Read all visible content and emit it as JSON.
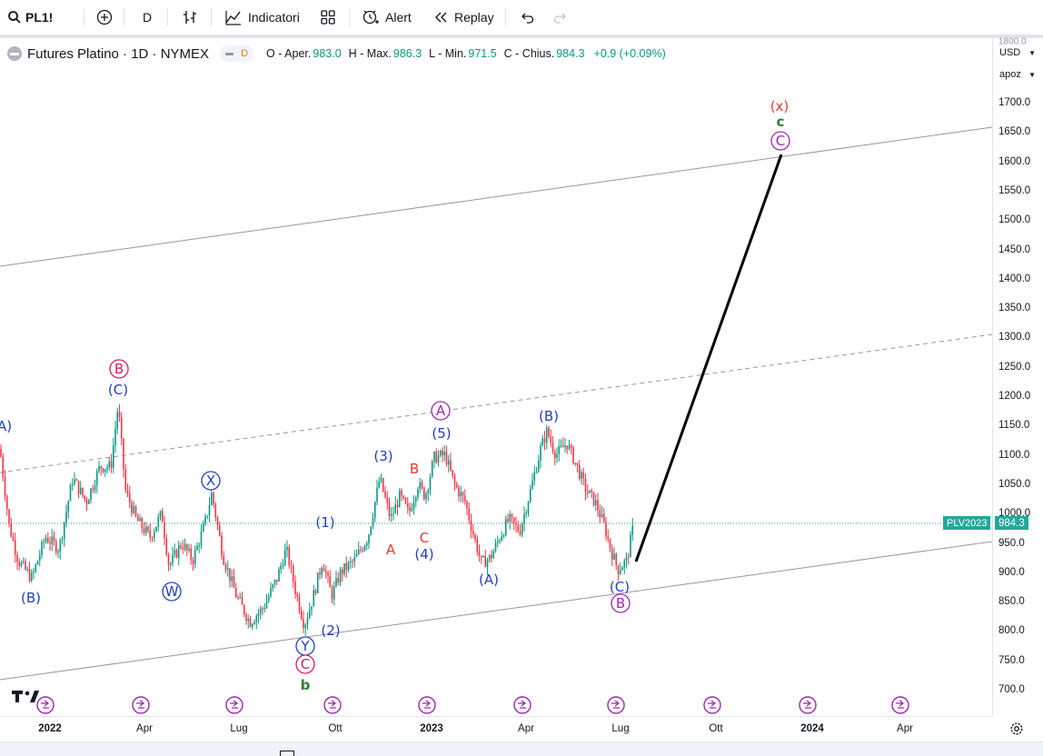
{
  "toolbar": {
    "symbol": "PL1!",
    "interval": "D",
    "indicators_label": "Indicatori",
    "alert_label": "Alert",
    "replay_label": "Replay"
  },
  "legend": {
    "title": "Futures Platino · 1D · NYMEX",
    "badge": "D",
    "open_label": "O - Aper.",
    "open_value": "983.0",
    "high_label": "H - Max.",
    "high_value": "986.3",
    "low_label": "L - Min.",
    "low_value": "971.5",
    "close_label": "C - Chius.",
    "close_value": "984.3",
    "change": "+0.9 (+0.09%)"
  },
  "price_axis": {
    "currency": "USD",
    "mode": "apoz",
    "ticks": [
      "1800.0",
      "1700.0",
      "1650.0",
      "1600.0",
      "1550.0",
      "1500.0",
      "1450.0",
      "1400.0",
      "1350.0",
      "1300.0",
      "1250.0",
      "1200.0",
      "1150.0",
      "1100.0",
      "1050.0",
      "1000.0",
      "950.0",
      "900.0",
      "850.0",
      "800.0",
      "750.0",
      "700.0"
    ],
    "last_symbol": "PLV2023",
    "last_price": "984.3"
  },
  "time_axis": {
    "ticks": [
      {
        "label": "2022",
        "bold": true
      },
      {
        "label": "Apr",
        "bold": false
      },
      {
        "label": "Lug",
        "bold": false
      },
      {
        "label": "Ott",
        "bold": false
      },
      {
        "label": "2023",
        "bold": true
      },
      {
        "label": "Apr",
        "bold": false
      },
      {
        "label": "Lug",
        "bold": false
      },
      {
        "label": "Ott",
        "bold": false
      },
      {
        "label": "2024",
        "bold": true
      },
      {
        "label": "Apr",
        "bold": false
      }
    ]
  },
  "wave_labels": [
    {
      "text": "A)",
      "color": "#1e3fbf",
      "circle": false
    },
    {
      "text": "B",
      "color": "#d81b60",
      "circle": true
    },
    {
      "text": "(C)",
      "color": "#1e3fbf",
      "circle": false
    },
    {
      "text": "(B)",
      "color": "#1e3fbf",
      "circle": false
    },
    {
      "text": "X",
      "color": "#1e3fbf",
      "circle": true
    },
    {
      "text": "W",
      "color": "#1e3fbf",
      "circle": true
    },
    {
      "text": "Y",
      "color": "#1e3fbf",
      "circle": true
    },
    {
      "text": "C",
      "color": "#d81b60",
      "circle": true
    },
    {
      "text": "b",
      "color": "#2e7d32",
      "circle": false
    },
    {
      "text": "(1)",
      "color": "#1e3fbf",
      "circle": false
    },
    {
      "text": "(2)",
      "color": "#1e3fbf",
      "circle": false
    },
    {
      "text": "(3)",
      "color": "#1e3fbf",
      "circle": false
    },
    {
      "text": "A",
      "color": "#e53935",
      "circle": false
    },
    {
      "text": "B",
      "color": "#e53935",
      "circle": false
    },
    {
      "text": "C",
      "color": "#e53935",
      "circle": false
    },
    {
      "text": "(4)",
      "color": "#1e3fbf",
      "circle": false
    },
    {
      "text": "A",
      "color": "#9c27b0",
      "circle": true
    },
    {
      "text": "(5)",
      "color": "#1e3fbf",
      "circle": false
    },
    {
      "text": "(A)",
      "color": "#1e3fbf",
      "circle": false
    },
    {
      "text": "(B)",
      "color": "#1e3fbf",
      "circle": false
    },
    {
      "text": "(C)",
      "color": "#1e3fbf",
      "circle": false
    },
    {
      "text": "B",
      "color": "#9c27b0",
      "circle": true
    },
    {
      "text": "(x)",
      "color": "#e53935",
      "circle": false
    },
    {
      "text": "c",
      "color": "#2e7d32",
      "circle": false
    },
    {
      "text": "C",
      "color": "#9c27b0",
      "circle": true
    }
  ],
  "colors": {
    "up": "#089981",
    "down": "#f23645",
    "price_line": "#26a69a"
  },
  "icons": [
    "search-icon",
    "plus-circle-icon",
    "bar-style-icon",
    "indicators-icon",
    "templates-icon",
    "alert-icon",
    "replay-icon",
    "undo-icon",
    "redo-icon",
    "tradingview-logo-icon",
    "event-marker-icon",
    "settings-icon"
  ]
}
